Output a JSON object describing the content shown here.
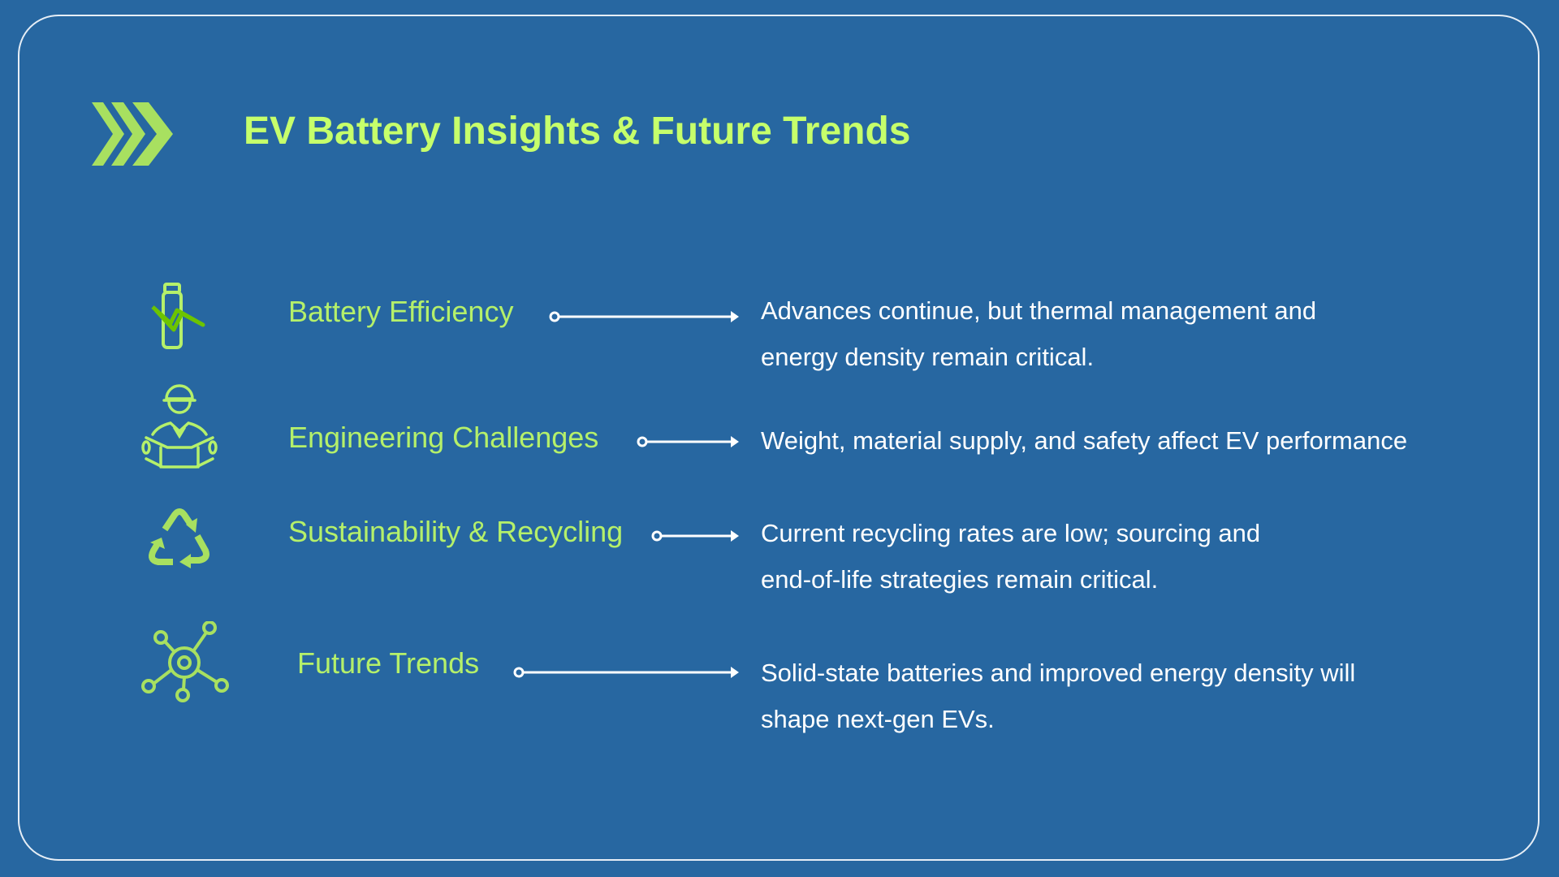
{
  "title": "EV Battery Insights & Future Trends",
  "colors": {
    "background": "#2767a1",
    "accent": "#c6ff6b",
    "icon": "#a8e060",
    "text": "#ffffff"
  },
  "rows": [
    {
      "icon": "battery-bolt-icon",
      "label": "Battery Efficiency",
      "description": [
        "Advances continue, but thermal management and",
        "energy density remain critical."
      ]
    },
    {
      "icon": "engineer-icon",
      "label": "Engineering Challenges",
      "description": [
        "Weight, material supply, and safety affect EV performance"
      ]
    },
    {
      "icon": "recycle-icon",
      "label": "Sustainability & Recycling",
      "description": [
        "Current recycling rates are low; sourcing and",
        "end-of-life strategies remain critical."
      ]
    },
    {
      "icon": "network-hub-icon",
      "label": "Future Trends",
      "description": [
        "Solid-state batteries and improved energy density will",
        "shape next-gen EVs."
      ]
    }
  ]
}
